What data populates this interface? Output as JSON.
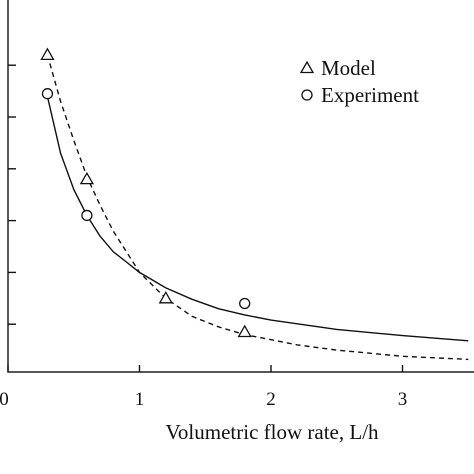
{
  "chart_data": {
    "type": "scatter",
    "xlabel": "Volumetric flow rate, L/h",
    "ylabel": "",
    "xlim": [
      0,
      3.5
    ],
    "ylim": [
      0,
      6.6
    ],
    "x_ticks": [
      0,
      1,
      2,
      3
    ],
    "x_tick_labels": [
      "0",
      "1",
      "2",
      "3"
    ],
    "y_ticks": [
      1,
      2,
      3,
      4,
      5,
      6
    ],
    "grid": false,
    "legend": {
      "placement": "top-right"
    },
    "series": [
      {
        "name": "Model",
        "marker": "triangle",
        "points": [
          {
            "x": 0.3,
            "y": 6.2
          },
          {
            "x": 0.6,
            "y": 3.8
          },
          {
            "x": 1.2,
            "y": 1.5
          },
          {
            "x": 1.8,
            "y": 0.85
          }
        ],
        "curve": {
          "style": "dashed",
          "points": [
            {
              "x": 0.3,
              "y": 6.2
            },
            {
              "x": 0.4,
              "y": 5.3
            },
            {
              "x": 0.5,
              "y": 4.55
            },
            {
              "x": 0.6,
              "y": 3.85
            },
            {
              "x": 0.7,
              "y": 3.3
            },
            {
              "x": 0.8,
              "y": 2.8
            },
            {
              "x": 0.9,
              "y": 2.4
            },
            {
              "x": 1.0,
              "y": 2.0
            },
            {
              "x": 1.2,
              "y": 1.5
            },
            {
              "x": 1.4,
              "y": 1.15
            },
            {
              "x": 1.6,
              "y": 0.95
            },
            {
              "x": 1.8,
              "y": 0.8
            },
            {
              "x": 2.0,
              "y": 0.7
            },
            {
              "x": 2.2,
              "y": 0.6
            },
            {
              "x": 2.5,
              "y": 0.5
            },
            {
              "x": 3.0,
              "y": 0.38
            },
            {
              "x": 3.5,
              "y": 0.32
            }
          ]
        }
      },
      {
        "name": "Experiment",
        "marker": "circle",
        "points": [
          {
            "x": 0.3,
            "y": 5.45
          },
          {
            "x": 0.6,
            "y": 3.1
          },
          {
            "x": 1.8,
            "y": 1.4
          }
        ],
        "curve": {
          "style": "solid",
          "points": [
            {
              "x": 0.3,
              "y": 5.4
            },
            {
              "x": 0.4,
              "y": 4.3
            },
            {
              "x": 0.5,
              "y": 3.6
            },
            {
              "x": 0.6,
              "y": 3.1
            },
            {
              "x": 0.7,
              "y": 2.7
            },
            {
              "x": 0.8,
              "y": 2.4
            },
            {
              "x": 0.9,
              "y": 2.2
            },
            {
              "x": 1.0,
              "y": 2.0
            },
            {
              "x": 1.2,
              "y": 1.7
            },
            {
              "x": 1.4,
              "y": 1.48
            },
            {
              "x": 1.6,
              "y": 1.3
            },
            {
              "x": 1.8,
              "y": 1.18
            },
            {
              "x": 2.0,
              "y": 1.08
            },
            {
              "x": 2.5,
              "y": 0.9
            },
            {
              "x": 3.0,
              "y": 0.78
            },
            {
              "x": 3.5,
              "y": 0.68
            }
          ]
        }
      }
    ]
  }
}
